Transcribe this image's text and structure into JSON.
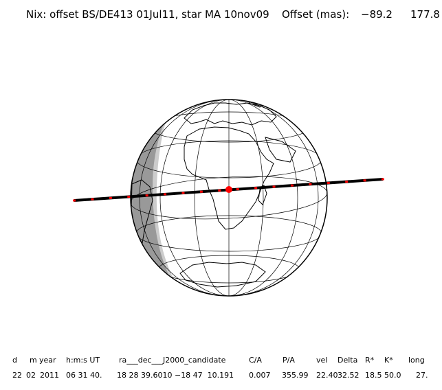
{
  "header": {
    "title": "Nix: offset BS/DE413 01Jul11, star MA 10nov09",
    "offset_label": "Offset (mas):",
    "offset_x": "−89.2",
    "offset_y": "177.8"
  },
  "table": {
    "headers": [
      "d",
      "m",
      "year",
      "h:m:s UT",
      "ra___dec___J2000_candidate",
      "C/A",
      "P/A",
      "vel",
      "Delta",
      "R*",
      "K*",
      "long"
    ],
    "values": [
      "22",
      "02",
      "2011",
      "06 31 40.",
      "18 28 39.6010 −18 47  10.191",
      "0.007",
      "355.99",
      "22.40",
      "32.52",
      "18.5",
      "50.0",
      "27."
    ]
  },
  "colors": {
    "night_dark": "#999999",
    "night_light": "#cccccc",
    "track": "#000000",
    "track_marks": "#ff0000",
    "event_point": "#ff0000"
  },
  "map": {
    "projection": "orthographic",
    "features": [
      "Africa",
      "Europe",
      "South America",
      "Antarctica"
    ]
  }
}
